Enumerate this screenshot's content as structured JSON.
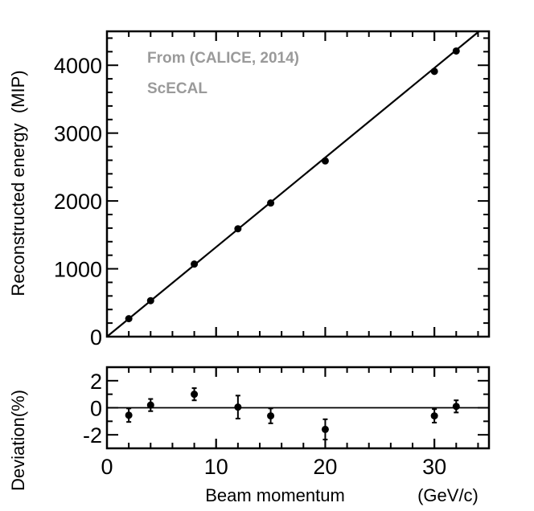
{
  "chart_data": [
    {
      "type": "scatter",
      "title": "",
      "annotations": [
        "From (CALICE, 2014)",
        "ScECAL"
      ],
      "xlabel": "Beam momentum",
      "xlabel_unit": "(GeV/c)",
      "ylabel": "Reconstructed energy  (MIP)",
      "xlim": [
        0,
        35
      ],
      "ylim": [
        0,
        4500
      ],
      "yticks": [
        "0",
        "1000",
        "2000",
        "3000",
        "4000"
      ],
      "x": [
        2,
        4,
        8,
        12,
        15,
        20,
        30,
        32
      ],
      "y": [
        265,
        530,
        1070,
        1590,
        1970,
        2590,
        3910,
        4210
      ],
      "fit_line": {
        "slope": 132,
        "intercept": 0
      },
      "grid": false
    },
    {
      "type": "scatter",
      "ylabel": "Deviation(%)",
      "xlim": [
        0,
        35
      ],
      "ylim": [
        -3,
        3
      ],
      "yticks": [
        "-2",
        "0",
        "2"
      ],
      "xticks": [
        "0",
        "10",
        "20",
        "30"
      ],
      "x": [
        2,
        4,
        8,
        12,
        15,
        20,
        30,
        32
      ],
      "y": [
        -0.55,
        0.2,
        1.0,
        0.05,
        -0.6,
        -1.6,
        -0.6,
        0.1
      ],
      "yerr": [
        0.5,
        0.45,
        0.45,
        0.85,
        0.55,
        0.75,
        0.5,
        0.45
      ],
      "reference_line": 0,
      "grid": false
    }
  ]
}
